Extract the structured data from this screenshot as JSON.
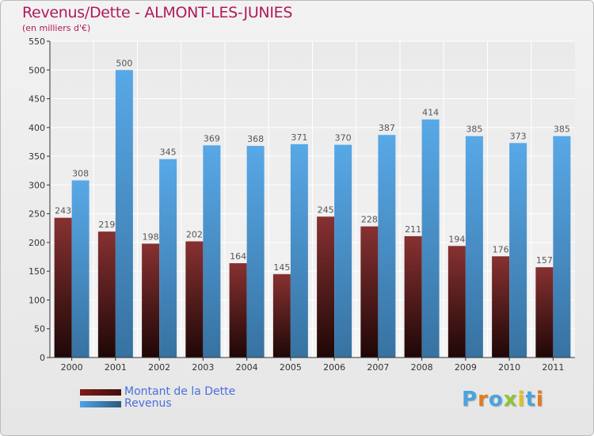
{
  "chart_data": {
    "type": "bar",
    "title": "Revenus/Dette - ALMONT-LES-JUNIES",
    "subtitle": "(en milliers d'€)",
    "categories": [
      "2000",
      "2001",
      "2002",
      "2003",
      "2004",
      "2005",
      "2006",
      "2007",
      "2008",
      "2009",
      "2010",
      "2011"
    ],
    "series": [
      {
        "name": "Montant de la Dette",
        "color": "#7a1a1a",
        "values": [
          243,
          219,
          198,
          202,
          164,
          145,
          245,
          228,
          211,
          194,
          176,
          157
        ]
      },
      {
        "name": "Revenus",
        "color": "#4fa3e6",
        "values": [
          308,
          500,
          345,
          369,
          368,
          371,
          370,
          387,
          414,
          385,
          373,
          385
        ]
      }
    ],
    "ylim": [
      0,
      550
    ],
    "yticks": [
      0,
      50,
      100,
      150,
      200,
      250,
      300,
      350,
      400,
      450,
      500,
      550
    ],
    "xlabel": "",
    "ylabel": "",
    "grid": true,
    "legend": "bottom-left"
  },
  "logo": {
    "letters": [
      "P",
      "r",
      "o",
      "x",
      "i",
      "t",
      "i"
    ],
    "colors": [
      "#4aa3df",
      "#e07b1f",
      "#4aa3df",
      "#8cc43c",
      "#e0c020",
      "#4aa3df",
      "#e07b1f"
    ]
  }
}
